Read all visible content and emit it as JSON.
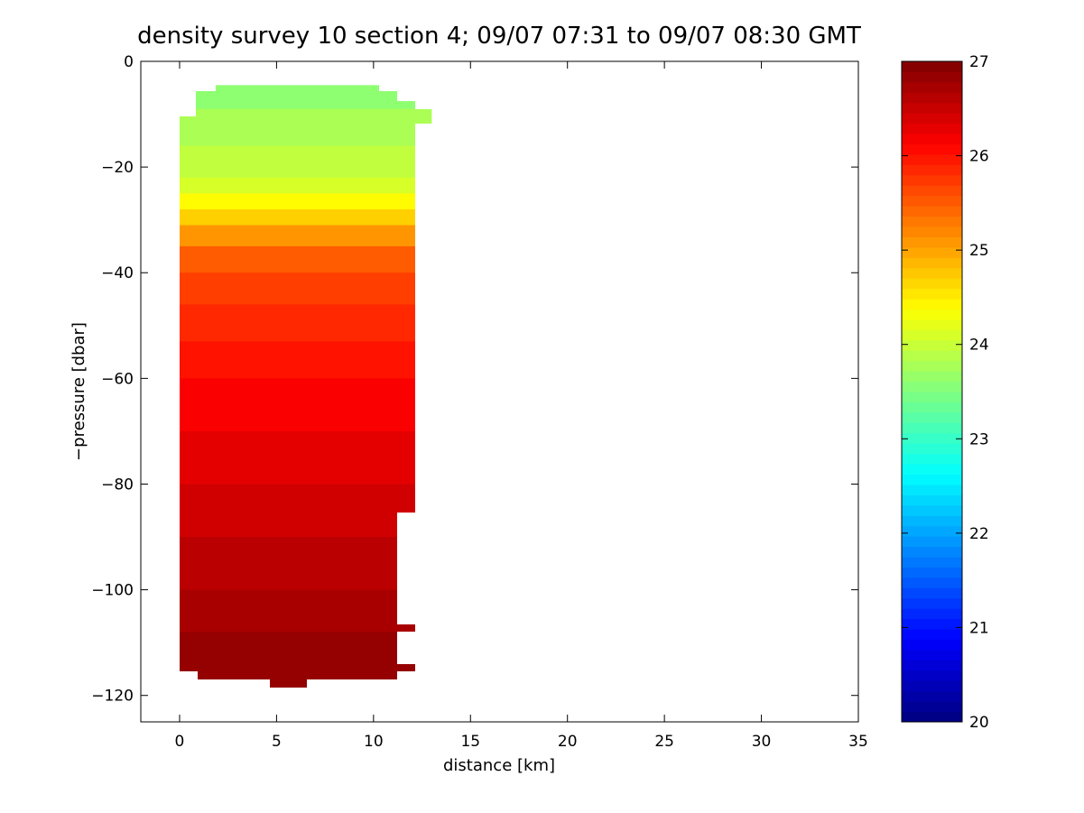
{
  "chart_data": {
    "type": "heatmap",
    "title": "density survey 10 section 4; 09/07 07:31 to 09/07 08:30 GMT",
    "xlabel": "distance [km]",
    "ylabel": "−pressure [dbar]",
    "xlim": [
      -2,
      35
    ],
    "ylim": [
      -125,
      0
    ],
    "xticks": [
      0,
      5,
      10,
      15,
      20,
      25,
      30,
      35
    ],
    "xtick_labels": [
      "0",
      "5",
      "10",
      "15",
      "20",
      "25",
      "30",
      "35"
    ],
    "yticks": [
      0,
      -20,
      -40,
      -60,
      -80,
      -100,
      -120
    ],
    "ytick_labels": [
      "0",
      "−20",
      "−40",
      "−60",
      "−80",
      "−100",
      "−120"
    ],
    "colormap": "jet",
    "colorbar": {
      "range": [
        20,
        27
      ],
      "ticks": [
        20,
        21,
        22,
        23,
        24,
        25,
        26,
        27
      ],
      "tick_labels": [
        "20",
        "21",
        "22",
        "23",
        "24",
        "25",
        "26",
        "27"
      ],
      "steps": 64
    },
    "density_layers": [
      {
        "top": -4.5,
        "bottom": -9,
        "value": 23.6
      },
      {
        "top": -9,
        "bottom": -16,
        "value": 23.8
      },
      {
        "top": -16,
        "bottom": -22,
        "value": 23.95
      },
      {
        "top": -22,
        "bottom": -25,
        "value": 24.1
      },
      {
        "top": -25,
        "bottom": -28,
        "value": 24.4
      },
      {
        "top": -28,
        "bottom": -31,
        "value": 24.7
      },
      {
        "top": -31,
        "bottom": -35,
        "value": 25.1
      },
      {
        "top": -35,
        "bottom": -40,
        "value": 25.5
      },
      {
        "top": -40,
        "bottom": -46,
        "value": 25.7
      },
      {
        "top": -46,
        "bottom": -53,
        "value": 25.85
      },
      {
        "top": -53,
        "bottom": -60,
        "value": 26.0
      },
      {
        "top": -60,
        "bottom": -70,
        "value": 26.15
      },
      {
        "top": -70,
        "bottom": -80,
        "value": 26.3
      },
      {
        "top": -80,
        "bottom": -90,
        "value": 26.45
      },
      {
        "top": -90,
        "bottom": -100,
        "value": 26.6
      },
      {
        "top": -100,
        "bottom": -108,
        "value": 26.72
      },
      {
        "top": -108,
        "bottom": -119,
        "value": 26.85
      }
    ],
    "data_extent_km": [
      0,
      13
    ]
  }
}
